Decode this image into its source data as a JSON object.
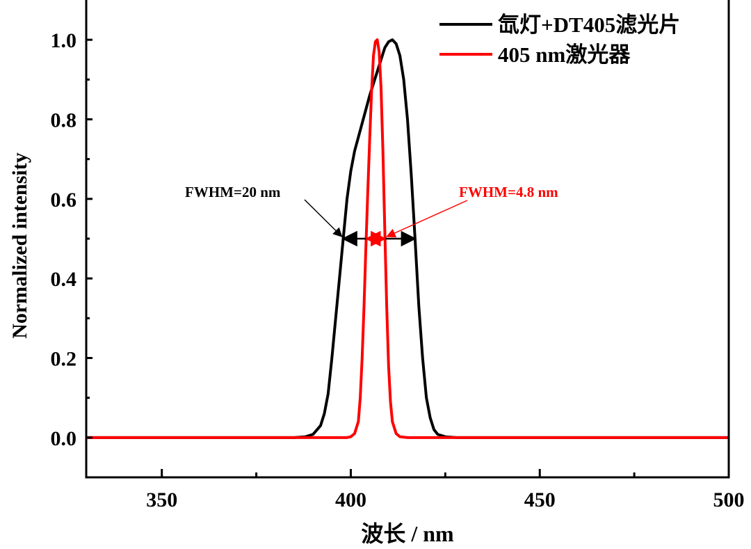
{
  "chart_data": {
    "type": "line",
    "xlabel": "波长 / nm",
    "ylabel": "Normalized intensity",
    "xlim": [
      330,
      500
    ],
    "ylim": [
      -0.1,
      1.1
    ],
    "x_ticks": [
      350,
      400,
      450,
      500
    ],
    "y_ticks": [
      0.0,
      0.2,
      0.4,
      0.6,
      0.8,
      1.0
    ],
    "x_tick_labels": [
      "350",
      "400",
      "450",
      "500"
    ],
    "y_tick_labels": [
      "0.0",
      "0.2",
      "0.4",
      "0.6",
      "0.8",
      "1.0"
    ],
    "legend_position": "top-right",
    "series": [
      {
        "name": "氙灯+DT405滤光片",
        "color": "#000000",
        "points": [
          [
            330,
            0
          ],
          [
            385,
            0
          ],
          [
            388,
            0.002
          ],
          [
            390,
            0.008
          ],
          [
            392,
            0.03
          ],
          [
            393,
            0.06
          ],
          [
            394,
            0.11
          ],
          [
            395,
            0.2
          ],
          [
            396,
            0.3
          ],
          [
            397,
            0.4
          ],
          [
            398,
            0.5
          ],
          [
            399,
            0.6
          ],
          [
            400,
            0.67
          ],
          [
            401,
            0.72
          ],
          [
            403,
            0.79
          ],
          [
            405,
            0.86
          ],
          [
            407,
            0.92
          ],
          [
            408,
            0.95
          ],
          [
            409,
            0.98
          ],
          [
            410,
            0.995
          ],
          [
            411,
            1.0
          ],
          [
            412,
            0.99
          ],
          [
            413,
            0.96
          ],
          [
            414,
            0.9
          ],
          [
            415,
            0.8
          ],
          [
            416,
            0.66
          ],
          [
            417,
            0.5
          ],
          [
            418,
            0.33
          ],
          [
            419,
            0.2
          ],
          [
            420,
            0.1
          ],
          [
            421,
            0.05
          ],
          [
            422,
            0.02
          ],
          [
            423,
            0.008
          ],
          [
            425,
            0.002
          ],
          [
            428,
            0
          ],
          [
            500,
            0
          ]
        ]
      },
      {
        "name": "405 nm激光器",
        "color": "#ff0000",
        "points": [
          [
            330,
            0
          ],
          [
            399,
            0
          ],
          [
            400,
            0.002
          ],
          [
            401,
            0.01
          ],
          [
            402,
            0.04
          ],
          [
            402.5,
            0.1
          ],
          [
            403,
            0.2
          ],
          [
            403.5,
            0.33
          ],
          [
            404,
            0.48
          ],
          [
            404.5,
            0.62
          ],
          [
            405,
            0.75
          ],
          [
            405.5,
            0.87
          ],
          [
            406,
            0.96
          ],
          [
            406.5,
            0.995
          ],
          [
            407,
            1.0
          ],
          [
            407.5,
            0.97
          ],
          [
            408,
            0.88
          ],
          [
            408.5,
            0.72
          ],
          [
            409,
            0.52
          ],
          [
            409.5,
            0.33
          ],
          [
            410,
            0.18
          ],
          [
            410.5,
            0.09
          ],
          [
            411,
            0.04
          ],
          [
            412,
            0.01
          ],
          [
            413,
            0.002
          ],
          [
            415,
            0
          ],
          [
            500,
            0
          ]
        ]
      }
    ],
    "annotations": [
      {
        "text": "FWHM=20 nm",
        "color": "#000000",
        "fwhm_from": 398,
        "fwhm_to": 417,
        "y": 0.5
      },
      {
        "text": "FWHM=4.8 nm",
        "color": "#ff0000",
        "fwhm_from": 404.2,
        "fwhm_to": 409,
        "y": 0.5
      }
    ]
  }
}
